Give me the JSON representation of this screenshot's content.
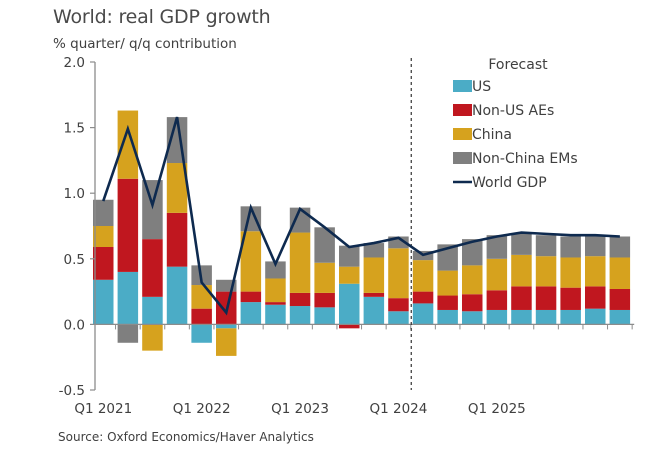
{
  "chart_data": {
    "type": "bar",
    "stacked": true,
    "title": "World: real GDP growth",
    "ylabel": "% quarter/ q/q contribution",
    "xlabel": "",
    "ylim": [
      -0.5,
      2.0
    ],
    "yticks": [
      "2.0",
      "1.5",
      "1.0",
      "0.5",
      "0.0",
      "-0.5"
    ],
    "ytick_values": [
      2.0,
      1.5,
      1.0,
      0.5,
      0.0,
      -0.5
    ],
    "grid": false,
    "categories": [
      "Q1 2021",
      "Q2 2021",
      "Q3 2021",
      "Q4 2021",
      "Q1 2022",
      "Q2 2022",
      "Q3 2022",
      "Q4 2022",
      "Q1 2023",
      "Q2 2023",
      "Q3 2023",
      "Q4 2023",
      "Q1 2024",
      "Q2 2024",
      "Q3 2024",
      "Q4 2024",
      "Q1 2025",
      "Q2 2025",
      "Q3 2025",
      "Q4 2025",
      "Q1 2026",
      "Q2 2026"
    ],
    "xtick_labels": [
      "Q1 2021",
      "Q1 2022",
      "Q1 2023",
      "Q1 2024",
      "Q1 2025"
    ],
    "xtick_label_indices": [
      0,
      4,
      8,
      12,
      16
    ],
    "forecast_label": "Forecast",
    "forecast_starts_after_index": 12,
    "series": [
      {
        "name": "US",
        "type": "bar",
        "color": "#4bacc6",
        "values": [
          0.34,
          0.4,
          0.21,
          0.44,
          -0.14,
          -0.03,
          0.17,
          0.15,
          0.14,
          0.13,
          0.31,
          0.21,
          0.1,
          0.16,
          0.11,
          0.1,
          0.11,
          0.11,
          0.11,
          0.11,
          0.12,
          0.11
        ]
      },
      {
        "name": "Non-US AEs",
        "type": "bar",
        "color": "#c0171f",
        "values": [
          0.25,
          0.71,
          0.44,
          0.41,
          0.12,
          0.25,
          0.08,
          0.02,
          0.1,
          0.11,
          -0.03,
          0.03,
          0.1,
          0.09,
          0.11,
          0.13,
          0.15,
          0.18,
          0.18,
          0.17,
          0.17,
          0.16
        ]
      },
      {
        "name": "China",
        "type": "bar",
        "color": "#d6a21e",
        "values": [
          0.16,
          0.52,
          -0.2,
          0.38,
          0.18,
          -0.21,
          0.46,
          0.18,
          0.46,
          0.23,
          0.13,
          0.27,
          0.38,
          0.24,
          0.19,
          0.22,
          0.24,
          0.24,
          0.23,
          0.23,
          0.23,
          0.24
        ]
      },
      {
        "name": "Non-China EMs",
        "type": "bar",
        "color": "#7f7f7f",
        "values": [
          0.2,
          -0.14,
          0.45,
          0.35,
          0.15,
          0.09,
          0.19,
          0.13,
          0.19,
          0.27,
          0.16,
          0.11,
          0.09,
          0.07,
          0.2,
          0.2,
          0.18,
          0.16,
          0.16,
          0.16,
          0.16,
          0.16
        ]
      },
      {
        "name": "World GDP",
        "type": "line",
        "color": "#0e2a4f",
        "values": [
          0.94,
          1.49,
          0.91,
          1.58,
          0.32,
          0.09,
          0.89,
          0.46,
          0.88,
          0.74,
          0.59,
          0.62,
          0.66,
          0.53,
          0.58,
          0.63,
          0.67,
          0.7,
          0.69,
          0.68,
          0.68,
          0.67
        ]
      }
    ],
    "legend": {
      "position": "top-right",
      "entries": [
        "US",
        "Non-US AEs",
        "China",
        "Non-China EMs",
        "World GDP"
      ]
    },
    "source": "Source: Oxford Economics/Haver Analytics"
  }
}
